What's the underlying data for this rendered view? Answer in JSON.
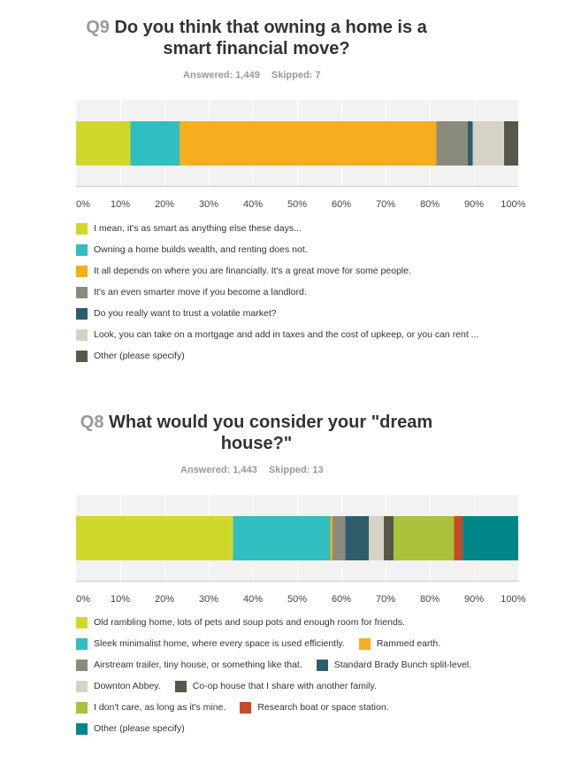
{
  "colors": {
    "c1": "#d1d82c",
    "c2": "#30bec0",
    "c3": "#f6ad1e",
    "c4": "#8a8b7c",
    "c5": "#2e5e6c",
    "c6": "#d6d3c6",
    "c7": "#58584a",
    "c8": "#aac23b",
    "c9": "#c9492b",
    "c10": "#00878a"
  },
  "chart_data": [
    {
      "type": "bar",
      "orientation": "horizontal-stacked",
      "qnum": "Q9",
      "title": "Do you think that owning a home is a smart financial move?",
      "answered_label": "Answered: 1,449",
      "skipped_label": "Skipped: 7",
      "x_ticks": [
        "0%",
        "10%",
        "20%",
        "30%",
        "40%",
        "50%",
        "60%",
        "70%",
        "80%",
        "90%",
        "100%"
      ],
      "xlim": [
        0,
        100
      ],
      "grid": true,
      "legend_position": "bottom",
      "series": [
        {
          "name": "I mean, it's as smart as anything else these days...",
          "value": 12.3,
          "color": "c1"
        },
        {
          "name": "Owning a home builds wealth, and renting does not.",
          "value": 11.1,
          "color": "c2"
        },
        {
          "name": "It all depends on where you are financially. It's a great move for some people.",
          "value": 58.1,
          "color": "c3"
        },
        {
          "name": "It's an even smarter move if you become a landlord.",
          "value": 7.1,
          "color": "c4"
        },
        {
          "name": "Do you really want to trust a volatile market?",
          "value": 1.1,
          "color": "c5"
        },
        {
          "name": "Look, you can take on a mortgage and add in taxes and the cost of upkeep, or you can rent ...",
          "value": 7.1,
          "color": "c6"
        },
        {
          "name": "Other (please specify)",
          "value": 3.2,
          "color": "c7"
        }
      ]
    },
    {
      "type": "bar",
      "orientation": "horizontal-stacked",
      "qnum": "Q8",
      "title": "What would you consider your \"dream house?\"",
      "answered_label": "Answered: 1,443",
      "skipped_label": "Skipped: 13",
      "x_ticks": [
        "0%",
        "10%",
        "20%",
        "30%",
        "40%",
        "50%",
        "60%",
        "70%",
        "80%",
        "90%",
        "100%"
      ],
      "xlim": [
        0,
        100
      ],
      "grid": true,
      "legend_position": "bottom",
      "series": [
        {
          "name": "Old rambling home, lots of pets and soup pots and enough room for friends.",
          "value": 35.5,
          "color": "c1"
        },
        {
          "name": "Sleek minimalist home, where every space is used efficiently.",
          "value": 22.0,
          "color": "c2"
        },
        {
          "name": "Rammed earth.",
          "value": 0.5,
          "color": "c3"
        },
        {
          "name": "Airstream trailer, tiny house, or something like that.",
          "value": 2.9,
          "color": "c4"
        },
        {
          "name": "Standard Brady Bunch split-level.",
          "value": 5.3,
          "color": "c5"
        },
        {
          "name": "Downton Abbey.",
          "value": 3.4,
          "color": "c6"
        },
        {
          "name": "Co-op house that I share with another family.",
          "value": 2.2,
          "color": "c7"
        },
        {
          "name": "I don't care, as long as it's mine.",
          "value": 13.7,
          "color": "c8"
        },
        {
          "name": "Research boat or space station.",
          "value": 1.9,
          "color": "c9"
        },
        {
          "name": "Other (please specify)",
          "value": 12.6,
          "color": "c10"
        }
      ]
    }
  ]
}
